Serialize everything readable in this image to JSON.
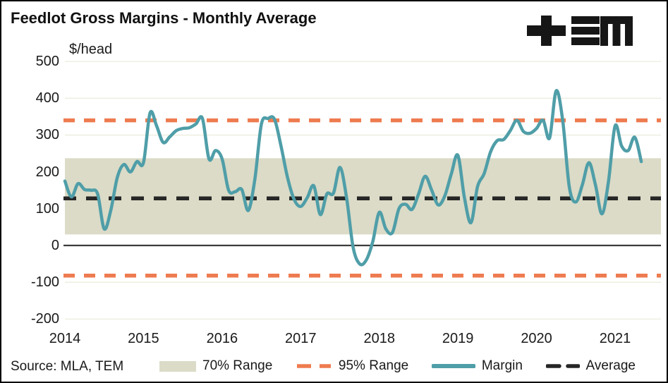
{
  "header": {
    "title": "Feedlot Gross Margins - Monthly Average"
  },
  "logo": {
    "name": "TEM"
  },
  "axis": {
    "unit_label": "$/head"
  },
  "source": {
    "label": "Source: MLA, TEM"
  },
  "legend": {
    "items": [
      {
        "label": "70% Range",
        "swatch": "band"
      },
      {
        "label": "95% Range",
        "swatch": "orange-dashes"
      },
      {
        "label": "Margin",
        "swatch": "teal-line"
      },
      {
        "label": "Average",
        "swatch": "black-dashes"
      }
    ]
  },
  "colors": {
    "margin_line": "#4F9EA8",
    "range95": "#EE7B4F",
    "band70": "#DBDBC7",
    "average": "#262626",
    "grid": "#ECECDE",
    "zero_axis": "#3C3C3C",
    "text": "#1A1A1A",
    "logo": "#161616"
  },
  "chart_data": {
    "type": "line",
    "title": "Feedlot Gross Margins - Monthly Average",
    "ylabel": "$/head",
    "ylim": [
      -200,
      500
    ],
    "y_ticks": [
      500,
      400,
      300,
      200,
      100,
      0,
      -100,
      -200
    ],
    "x_ticks": [
      "2014",
      "2015",
      "2016",
      "2017",
      "2018",
      "2019",
      "2020",
      "2021"
    ],
    "x_start_month": "2014-01",
    "x_end_month": "2021-05",
    "grid": "horizontal",
    "legend_position": "bottom",
    "reference_lines": {
      "average": 128,
      "range95_upper": 340,
      "range95_lower": -82,
      "range70_upper": 237,
      "range70_lower": 30
    },
    "series": [
      {
        "name": "Margin",
        "type": "line",
        "monthly_values": [
          175,
          132,
          168,
          152,
          150,
          140,
          45,
          95,
          185,
          220,
          200,
          228,
          225,
          360,
          325,
          280,
          295,
          312,
          318,
          320,
          330,
          345,
          235,
          258,
          235,
          150,
          146,
          152,
          95,
          180,
          330,
          345,
          343,
          270,
          184,
          125,
          106,
          130,
          162,
          84,
          140,
          142,
          212,
          130,
          -5,
          -50,
          -40,
          10,
          90,
          45,
          35,
          100,
          112,
          98,
          140,
          188,
          150,
          110,
          135,
          195,
          245,
          130,
          62,
          160,
          195,
          255,
          285,
          288,
          312,
          340,
          310,
          305,
          318,
          340,
          292,
          420,
          340,
          160,
          118,
          165,
          225,
          165,
          86,
          175,
          325,
          270,
          258,
          294,
          228
        ]
      }
    ]
  }
}
